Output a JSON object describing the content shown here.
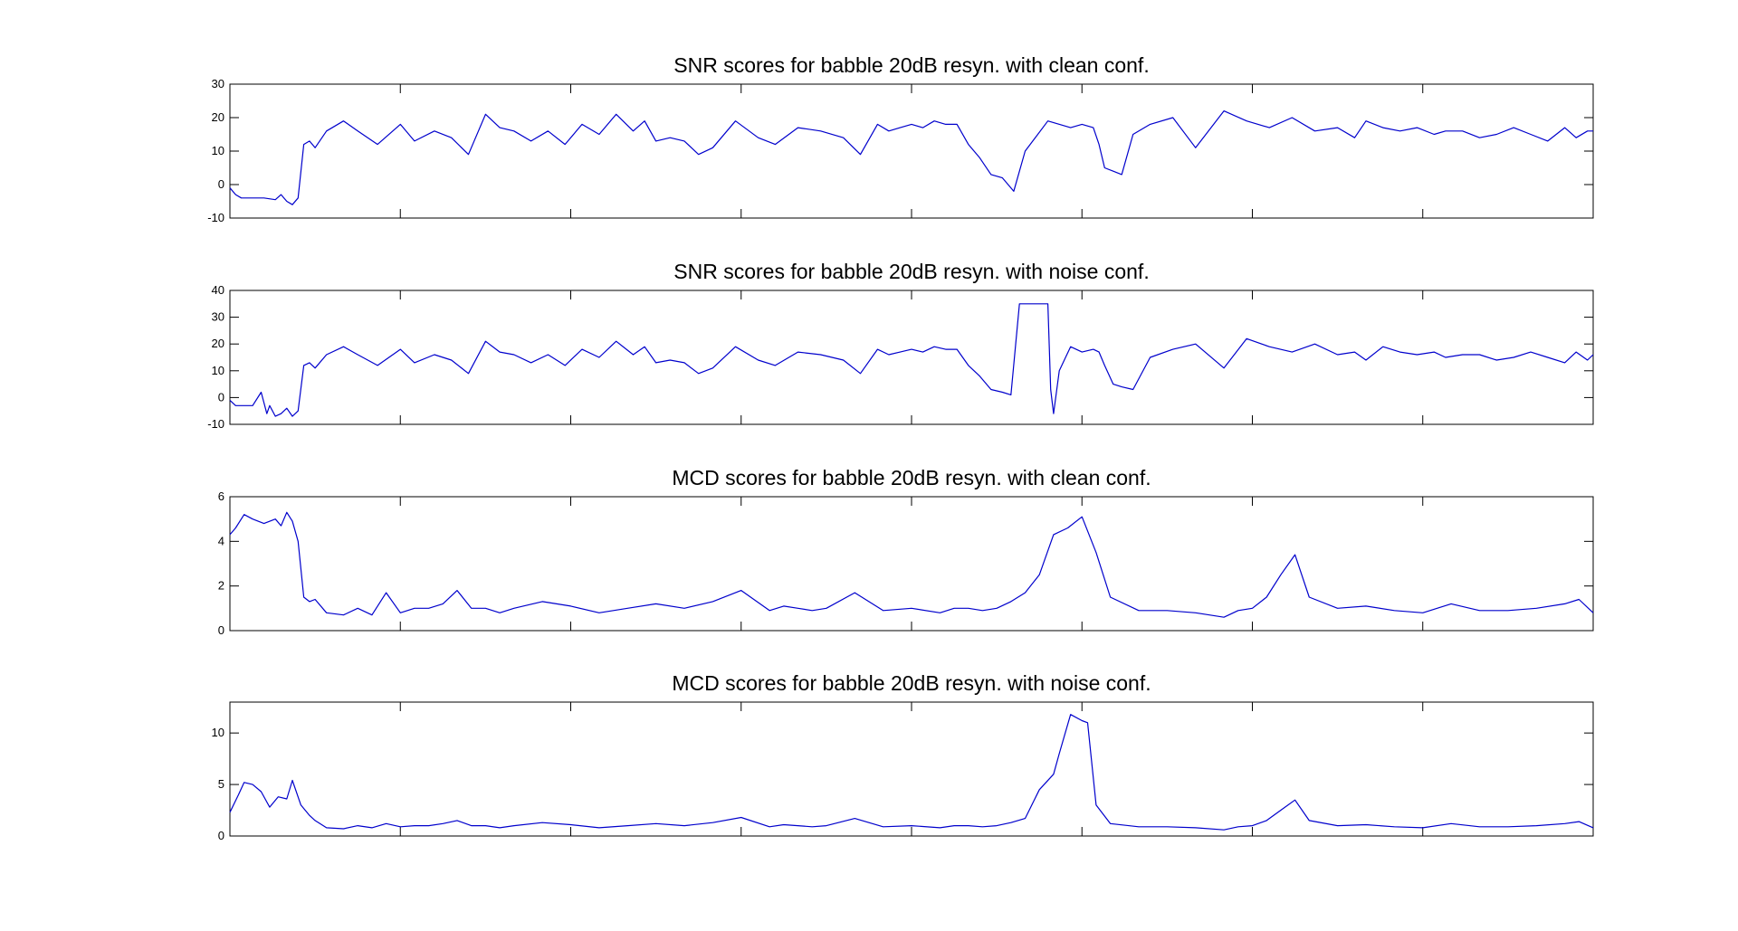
{
  "chart_data": [
    {
      "type": "line",
      "title": "SNR scores for babble 20dB resyn. with clean conf.",
      "xlabel": "",
      "ylabel": "",
      "ylim": [
        -10,
        30
      ],
      "yticks": [
        -10,
        0,
        10,
        20,
        30
      ],
      "xlim": [
        0,
        480
      ],
      "xticks": [
        0,
        60,
        120,
        180,
        240,
        300,
        360,
        420,
        480
      ],
      "show_xtick_labels": false,
      "grid": false,
      "series": [
        {
          "color": "#0000cc",
          "x": [
            0,
            2,
            4,
            8,
            12,
            16,
            18,
            20,
            22,
            24,
            26,
            28,
            30,
            34,
            40,
            45,
            52,
            60,
            65,
            72,
            78,
            84,
            90,
            95,
            100,
            106,
            112,
            118,
            124,
            130,
            136,
            142,
            146,
            150,
            155,
            160,
            165,
            170,
            178,
            186,
            192,
            200,
            208,
            216,
            222,
            228,
            232,
            236,
            240,
            244,
            248,
            252,
            256,
            260,
            264,
            268,
            272,
            276,
            280,
            288,
            296,
            300,
            304,
            306,
            308,
            311,
            314,
            318,
            324,
            332,
            340,
            350,
            358,
            366,
            374,
            382,
            390,
            396,
            400,
            406,
            412,
            418,
            424,
            428,
            434,
            440,
            446,
            452,
            458,
            464,
            470,
            474,
            478,
            480
          ],
          "y": [
            -1,
            -3,
            -4,
            -4,
            -4,
            -4.5,
            -3,
            -5,
            -6,
            -4,
            12,
            13,
            11,
            16,
            19,
            16,
            12,
            18,
            13,
            16,
            14,
            9,
            21,
            17,
            16,
            13,
            16,
            12,
            18,
            15,
            21,
            16,
            19,
            13,
            14,
            13,
            9,
            11,
            19,
            14,
            12,
            17,
            16,
            14,
            9,
            18,
            16,
            17,
            18,
            17,
            19,
            18,
            18,
            12,
            8,
            3,
            2,
            -2,
            10,
            19,
            17,
            18,
            17,
            12,
            5,
            4,
            3,
            15,
            18,
            20,
            11,
            22,
            19,
            17,
            20,
            16,
            17,
            14,
            19,
            17,
            16,
            17,
            15,
            16,
            16,
            14,
            15,
            17,
            15,
            13,
            17,
            14,
            16,
            16
          ]
        }
      ]
    },
    {
      "type": "line",
      "title": "SNR scores for babble 20dB resyn. with noise conf.",
      "xlabel": "",
      "ylabel": "",
      "ylim": [
        -10,
        40
      ],
      "yticks": [
        -10,
        0,
        10,
        20,
        30,
        40
      ],
      "xlim": [
        0,
        480
      ],
      "xticks": [
        0,
        60,
        120,
        180,
        240,
        300,
        360,
        420,
        480
      ],
      "show_xtick_labels": false,
      "grid": false,
      "series": [
        {
          "color": "#0000cc",
          "x": [
            0,
            2,
            4,
            8,
            11,
            13,
            14,
            16,
            18,
            20,
            22,
            24,
            26,
            28,
            30,
            34,
            40,
            45,
            52,
            60,
            65,
            72,
            78,
            84,
            90,
            95,
            100,
            106,
            112,
            118,
            124,
            130,
            136,
            142,
            146,
            150,
            155,
            160,
            165,
            170,
            178,
            186,
            192,
            200,
            208,
            216,
            222,
            228,
            232,
            236,
            240,
            244,
            248,
            252,
            256,
            260,
            264,
            268,
            272,
            275,
            278,
            281,
            284,
            286,
            288,
            289,
            290,
            292,
            296,
            300,
            304,
            306,
            308,
            311,
            314,
            318,
            324,
            332,
            340,
            350,
            358,
            366,
            374,
            382,
            390,
            396,
            400,
            406,
            412,
            418,
            424,
            428,
            434,
            440,
            446,
            452,
            458,
            464,
            470,
            474,
            478,
            480
          ],
          "y": [
            -1,
            -3,
            -3,
            -3,
            2,
            -6,
            -3,
            -7,
            -6,
            -4,
            -7,
            -5,
            12,
            13,
            11,
            16,
            19,
            16,
            12,
            18,
            13,
            16,
            14,
            9,
            21,
            17,
            16,
            13,
            16,
            12,
            18,
            15,
            21,
            16,
            19,
            13,
            14,
            13,
            9,
            11,
            19,
            14,
            12,
            17,
            16,
            14,
            9,
            18,
            16,
            17,
            18,
            17,
            19,
            18,
            18,
            12,
            8,
            3,
            2,
            1,
            35,
            35,
            35,
            35,
            35,
            3,
            -6,
            10,
            19,
            17,
            18,
            17,
            12,
            5,
            4,
            3,
            15,
            18,
            20,
            11,
            22,
            19,
            17,
            20,
            16,
            17,
            14,
            19,
            17,
            16,
            17,
            15,
            16,
            16,
            14,
            15,
            17,
            15,
            13,
            17,
            14,
            16
          ]
        }
      ]
    },
    {
      "type": "line",
      "title": "MCD scores for babble 20dB resyn. with clean conf.",
      "xlabel": "",
      "ylabel": "",
      "ylim": [
        0,
        6
      ],
      "yticks": [
        0,
        2,
        4,
        6
      ],
      "xlim": [
        0,
        480
      ],
      "xticks": [
        0,
        60,
        120,
        180,
        240,
        300,
        360,
        420,
        480
      ],
      "show_xtick_labels": false,
      "grid": false,
      "series": [
        {
          "color": "#0000cc",
          "x": [
            0,
            2,
            5,
            8,
            12,
            16,
            18,
            20,
            22,
            24,
            26,
            28,
            30,
            34,
            40,
            45,
            50,
            55,
            60,
            65,
            70,
            75,
            80,
            85,
            90,
            95,
            100,
            110,
            120,
            130,
            140,
            150,
            160,
            170,
            180,
            190,
            195,
            200,
            205,
            210,
            220,
            230,
            240,
            250,
            255,
            260,
            265,
            270,
            275,
            280,
            285,
            290,
            295,
            300,
            305,
            310,
            320,
            330,
            340,
            350,
            355,
            360,
            365,
            370,
            375,
            380,
            390,
            400,
            410,
            420,
            430,
            440,
            450,
            460,
            470,
            475,
            480
          ],
          "y": [
            4.3,
            4.6,
            5.2,
            5.0,
            4.8,
            5.0,
            4.7,
            5.3,
            4.9,
            4.0,
            1.5,
            1.3,
            1.4,
            0.8,
            0.7,
            1.0,
            0.7,
            1.7,
            0.8,
            1.0,
            1.0,
            1.2,
            1.8,
            1.0,
            1.0,
            0.8,
            1.0,
            1.3,
            1.1,
            0.8,
            1.0,
            1.2,
            1.0,
            1.3,
            1.8,
            0.9,
            1.1,
            1.0,
            0.9,
            1.0,
            1.7,
            0.9,
            1.0,
            0.8,
            1.0,
            1.0,
            0.9,
            1.0,
            1.3,
            1.7,
            2.5,
            4.3,
            4.6,
            5.1,
            3.5,
            1.5,
            0.9,
            0.9,
            0.8,
            0.6,
            0.9,
            1.0,
            1.5,
            2.5,
            3.4,
            1.5,
            1.0,
            1.1,
            0.9,
            0.8,
            1.2,
            0.9,
            0.9,
            1.0,
            1.2,
            1.4,
            0.8
          ]
        }
      ]
    },
    {
      "type": "line",
      "title": "MCD scores for babble 20dB resyn. with noise conf.",
      "xlabel": "",
      "ylabel": "",
      "ylim": [
        0,
        13
      ],
      "yticks": [
        0,
        5,
        10
      ],
      "xlim": [
        0,
        480
      ],
      "xticks": [
        0,
        60,
        120,
        180,
        240,
        300,
        360,
        420,
        480
      ],
      "show_xtick_labels": false,
      "grid": false,
      "series": [
        {
          "color": "#0000cc",
          "x": [
            0,
            3,
            5,
            8,
            11,
            14,
            17,
            20,
            22,
            25,
            28,
            30,
            34,
            40,
            45,
            50,
            55,
            60,
            65,
            70,
            75,
            80,
            85,
            90,
            95,
            100,
            110,
            120,
            130,
            140,
            150,
            160,
            170,
            180,
            190,
            195,
            200,
            205,
            210,
            220,
            230,
            240,
            250,
            255,
            260,
            265,
            270,
            275,
            280,
            285,
            290,
            292,
            296,
            300,
            302,
            305,
            310,
            320,
            330,
            340,
            350,
            355,
            360,
            365,
            370,
            375,
            380,
            390,
            400,
            410,
            420,
            430,
            440,
            450,
            460,
            470,
            475,
            480
          ],
          "y": [
            2.3,
            4.0,
            5.2,
            5.0,
            4.3,
            2.8,
            3.8,
            3.6,
            5.4,
            3.0,
            2.0,
            1.5,
            0.8,
            0.7,
            1.0,
            0.8,
            1.2,
            0.9,
            1.0,
            1.0,
            1.2,
            1.5,
            1.0,
            1.0,
            0.8,
            1.0,
            1.3,
            1.1,
            0.8,
            1.0,
            1.2,
            1.0,
            1.3,
            1.8,
            0.9,
            1.1,
            1.0,
            0.9,
            1.0,
            1.7,
            0.9,
            1.0,
            0.8,
            1.0,
            1.0,
            0.9,
            1.0,
            1.3,
            1.7,
            4.5,
            6.0,
            8.0,
            11.8,
            11.2,
            11.0,
            3.0,
            1.2,
            0.9,
            0.9,
            0.8,
            0.6,
            0.9,
            1.0,
            1.5,
            2.5,
            3.5,
            1.5,
            1.0,
            1.1,
            0.9,
            0.8,
            1.2,
            0.9,
            0.9,
            1.0,
            1.2,
            1.4,
            0.8
          ]
        }
      ]
    }
  ]
}
